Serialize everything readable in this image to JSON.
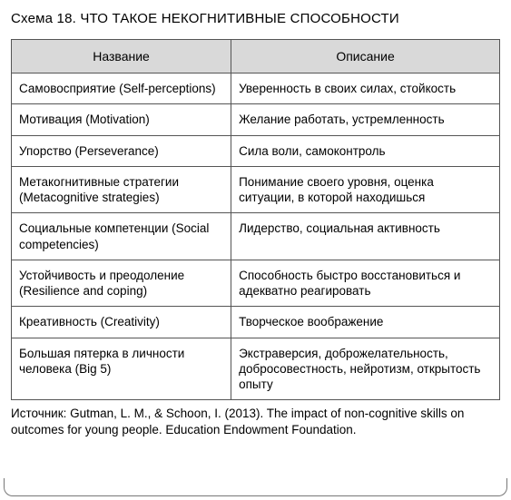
{
  "title": "Схема 18. ЧТО ТАКОЕ НЕКОГНИТИВНЫЕ СПОСОБНОСТИ",
  "table": {
    "columns": [
      "Название",
      "Описание"
    ],
    "col_widths_pct": [
      45,
      55
    ],
    "header_bg": "#d9d9d9",
    "border_color": "#555555",
    "font_size_header": 14,
    "font_size_cell": 13.5,
    "rows": [
      [
        "Самовосприятие (Self-perceptions)",
        "Уверенность в своих силах, стойкость"
      ],
      [
        "Мотивация (Motivation)",
        "Желание работать, устремленность"
      ],
      [
        "Упорство (Perseverance)",
        "Сила воли, самоконтроль"
      ],
      [
        "Метакогнитивные стратегии (Metacognitive strategies)",
        "Понимание своего уровня, оценка ситуации, в которой находишься"
      ],
      [
        "Социальные компетенции (Social competencies)",
        "Лидерство, социальная активность"
      ],
      [
        "Устойчивость и преодоление (Resilience and coping)",
        "Способность быстро восстановиться и адекватно реагировать"
      ],
      [
        "Креативность (Creativity)",
        "Творческое воображение"
      ],
      [
        "Большая пятерка в личности человека (Big 5)",
        "Экстраверсия, доброжелательность, добросовестность, нейротизм, открытость опыту"
      ]
    ]
  },
  "source": "Источник: Gutman, L. M., & Schoon, I. (2013). The impact of non-cognitive skills on outcomes for young people. Education Endowment Foundation."
}
